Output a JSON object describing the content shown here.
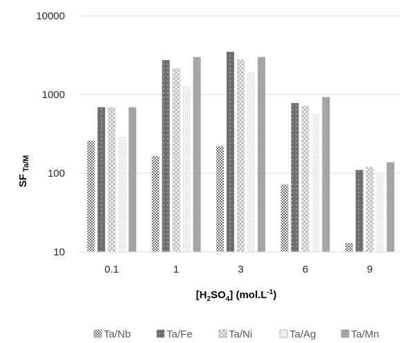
{
  "chart_data": {
    "type": "bar",
    "title": "",
    "categories": [
      "0.1",
      "1",
      "3",
      "6",
      "9"
    ],
    "series": [
      {
        "name": "Ta/Nb",
        "values": [
          260,
          165,
          220,
          72,
          13
        ]
      },
      {
        "name": "Ta/Fe",
        "values": [
          690,
          2750,
          3500,
          780,
          110
        ]
      },
      {
        "name": "Ta/Ni",
        "values": [
          690,
          2150,
          2800,
          720,
          120
        ]
      },
      {
        "name": "Ta/Ag",
        "values": [
          290,
          1250,
          1950,
          570,
          100
        ]
      },
      {
        "name": "Ta/Mn",
        "values": [
          690,
          3000,
          3000,
          930,
          138
        ]
      }
    ],
    "yscale": "log",
    "ylim": [
      10,
      10000
    ],
    "yticks": [
      10,
      100,
      1000,
      10000
    ],
    "ytick_labels": [
      "10",
      "100",
      "1000",
      "10000"
    ],
    "ylabel": {
      "main": "SF",
      "subscript": "Ta/M"
    },
    "xlabel": {
      "p1": "[H",
      "sub1": "2",
      "p2": "SO",
      "sub2": "4",
      "p3": "] (mol.L",
      "sup": "-1",
      "p4": ")"
    },
    "grid": true,
    "legend_position": "bottom",
    "series_colors": [
      "#7f7f7f",
      "#7f7f7f",
      "#ededed",
      "#ededed",
      "#a6a6a6"
    ]
  }
}
